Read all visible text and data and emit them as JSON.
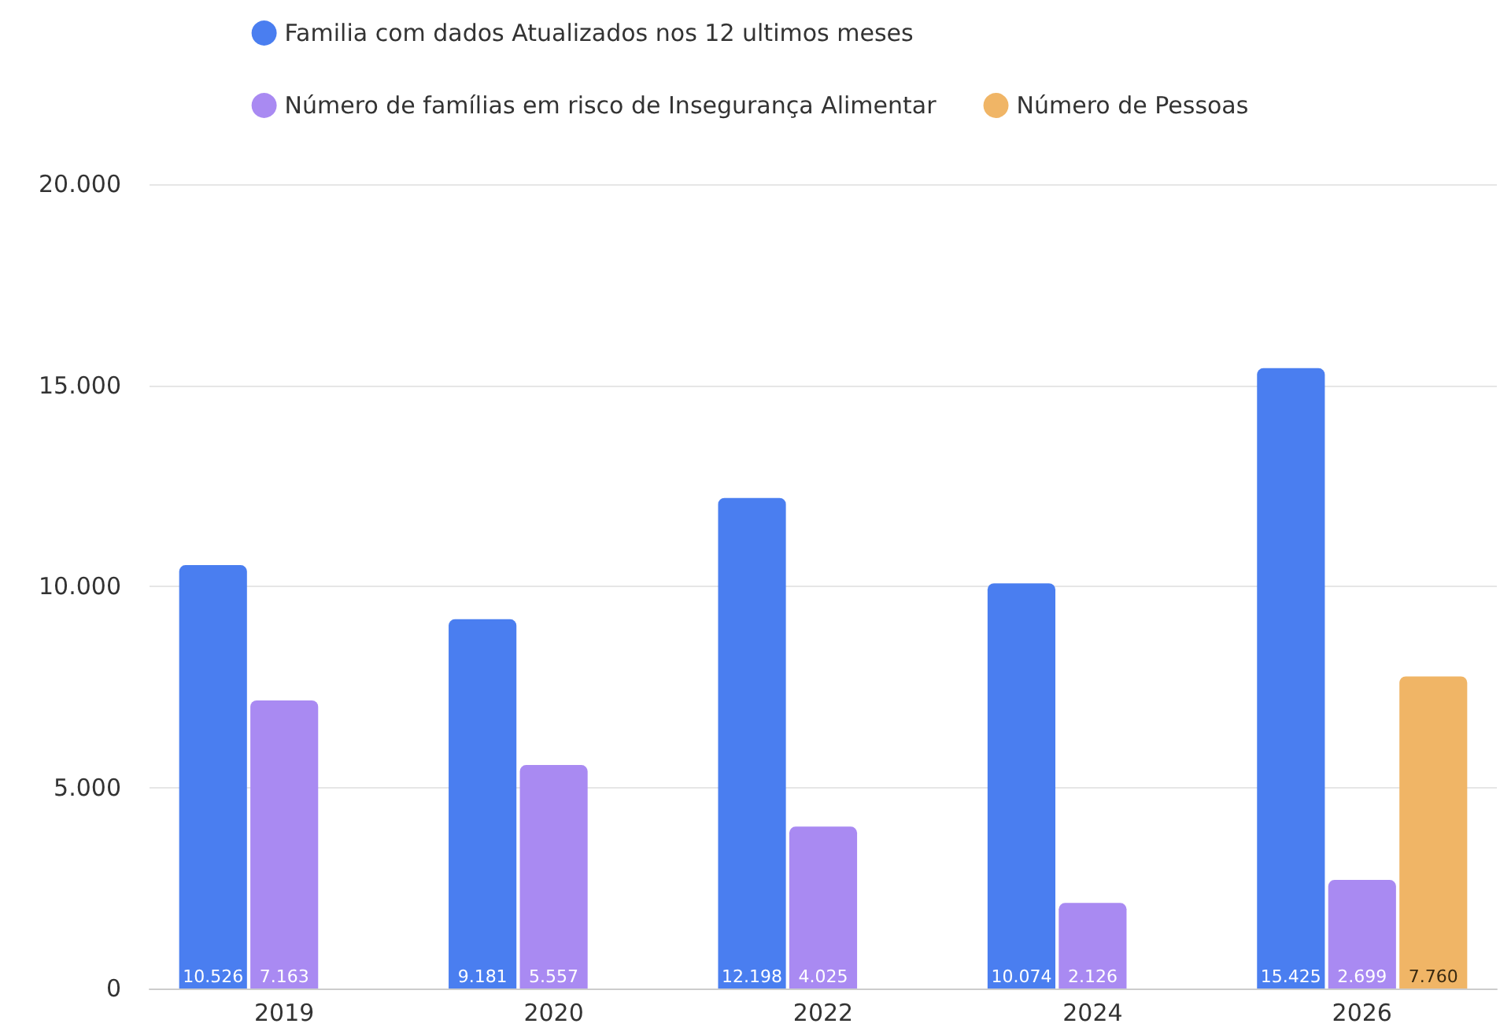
{
  "chart_data": {
    "type": "bar",
    "categories": [
      "2019",
      "2020",
      "2022",
      "2024",
      "2026"
    ],
    "series": [
      {
        "name": "Familia com dados Atualizados nos 12 ultimos meses",
        "color": "#4a7ef0",
        "values": [
          10526,
          9181,
          12198,
          10074,
          15425
        ],
        "value_labels": [
          "10.526",
          "9.181",
          "12.198",
          "10.074",
          "15.425"
        ]
      },
      {
        "name": "Número de famílias em risco de Insegurança Alimentar",
        "color": "#a98af2",
        "values": [
          7163,
          5557,
          4025,
          2126,
          2699
        ],
        "value_labels": [
          "7.163",
          "5.557",
          "4.025",
          "2.126",
          "2.699"
        ]
      },
      {
        "name": "Número de Pessoas",
        "color": "#f0b566",
        "values": [
          null,
          null,
          null,
          null,
          7760
        ],
        "value_labels": [
          null,
          null,
          null,
          null,
          "7.760"
        ]
      }
    ],
    "ylim": [
      0,
      20000
    ],
    "yticks": [
      {
        "value": 0,
        "label": "0"
      },
      {
        "value": 5000,
        "label": "5.000"
      },
      {
        "value": 10000,
        "label": "10.000"
      },
      {
        "value": 15000,
        "label": "15.000"
      },
      {
        "value": 20000,
        "label": "20.000"
      }
    ],
    "grid": "y",
    "legend": "top"
  }
}
